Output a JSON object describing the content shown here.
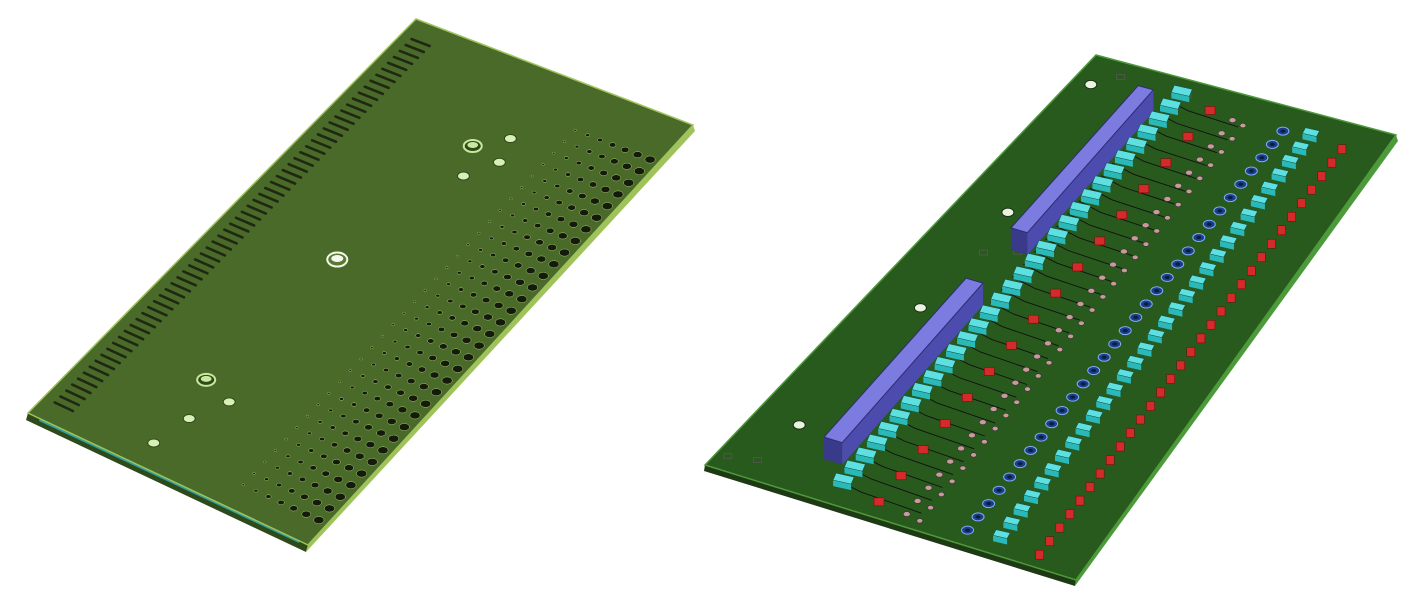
{
  "scene": {
    "background": "#ffffff",
    "views": [
      {
        "name": "pcb-bottom-view",
        "side": "bottom",
        "board_color": "#4a6a2a",
        "edge_color": "#9fc35a",
        "slot_color": "#202811",
        "hole_color": "#141a0c",
        "mounting_hole_color": "#d8efb8",
        "edge_slot_count": 62,
        "via_rows": 7,
        "vias_per_row": 32,
        "large_mounting_holes": 3,
        "small_mounting_holes": 6
      },
      {
        "name": "pcb-top-view",
        "side": "top",
        "board_color": "#285a1e",
        "edge_color": "#4d9a3a",
        "connector_color": "#5b5bc0",
        "connector_top_color": "#7b7be0",
        "ceramic_capacitor_color": "#2bb8b8",
        "ceramic_capacitor_top_color": "#5fe0e0",
        "tantalum_capacitor_color": "#d42a2a",
        "pad_color": "#c89a9a",
        "electrolytic_color": "#1e3e8a",
        "trace_color": "#111111",
        "connectors": 2,
        "component_rows": 31
      }
    ]
  }
}
